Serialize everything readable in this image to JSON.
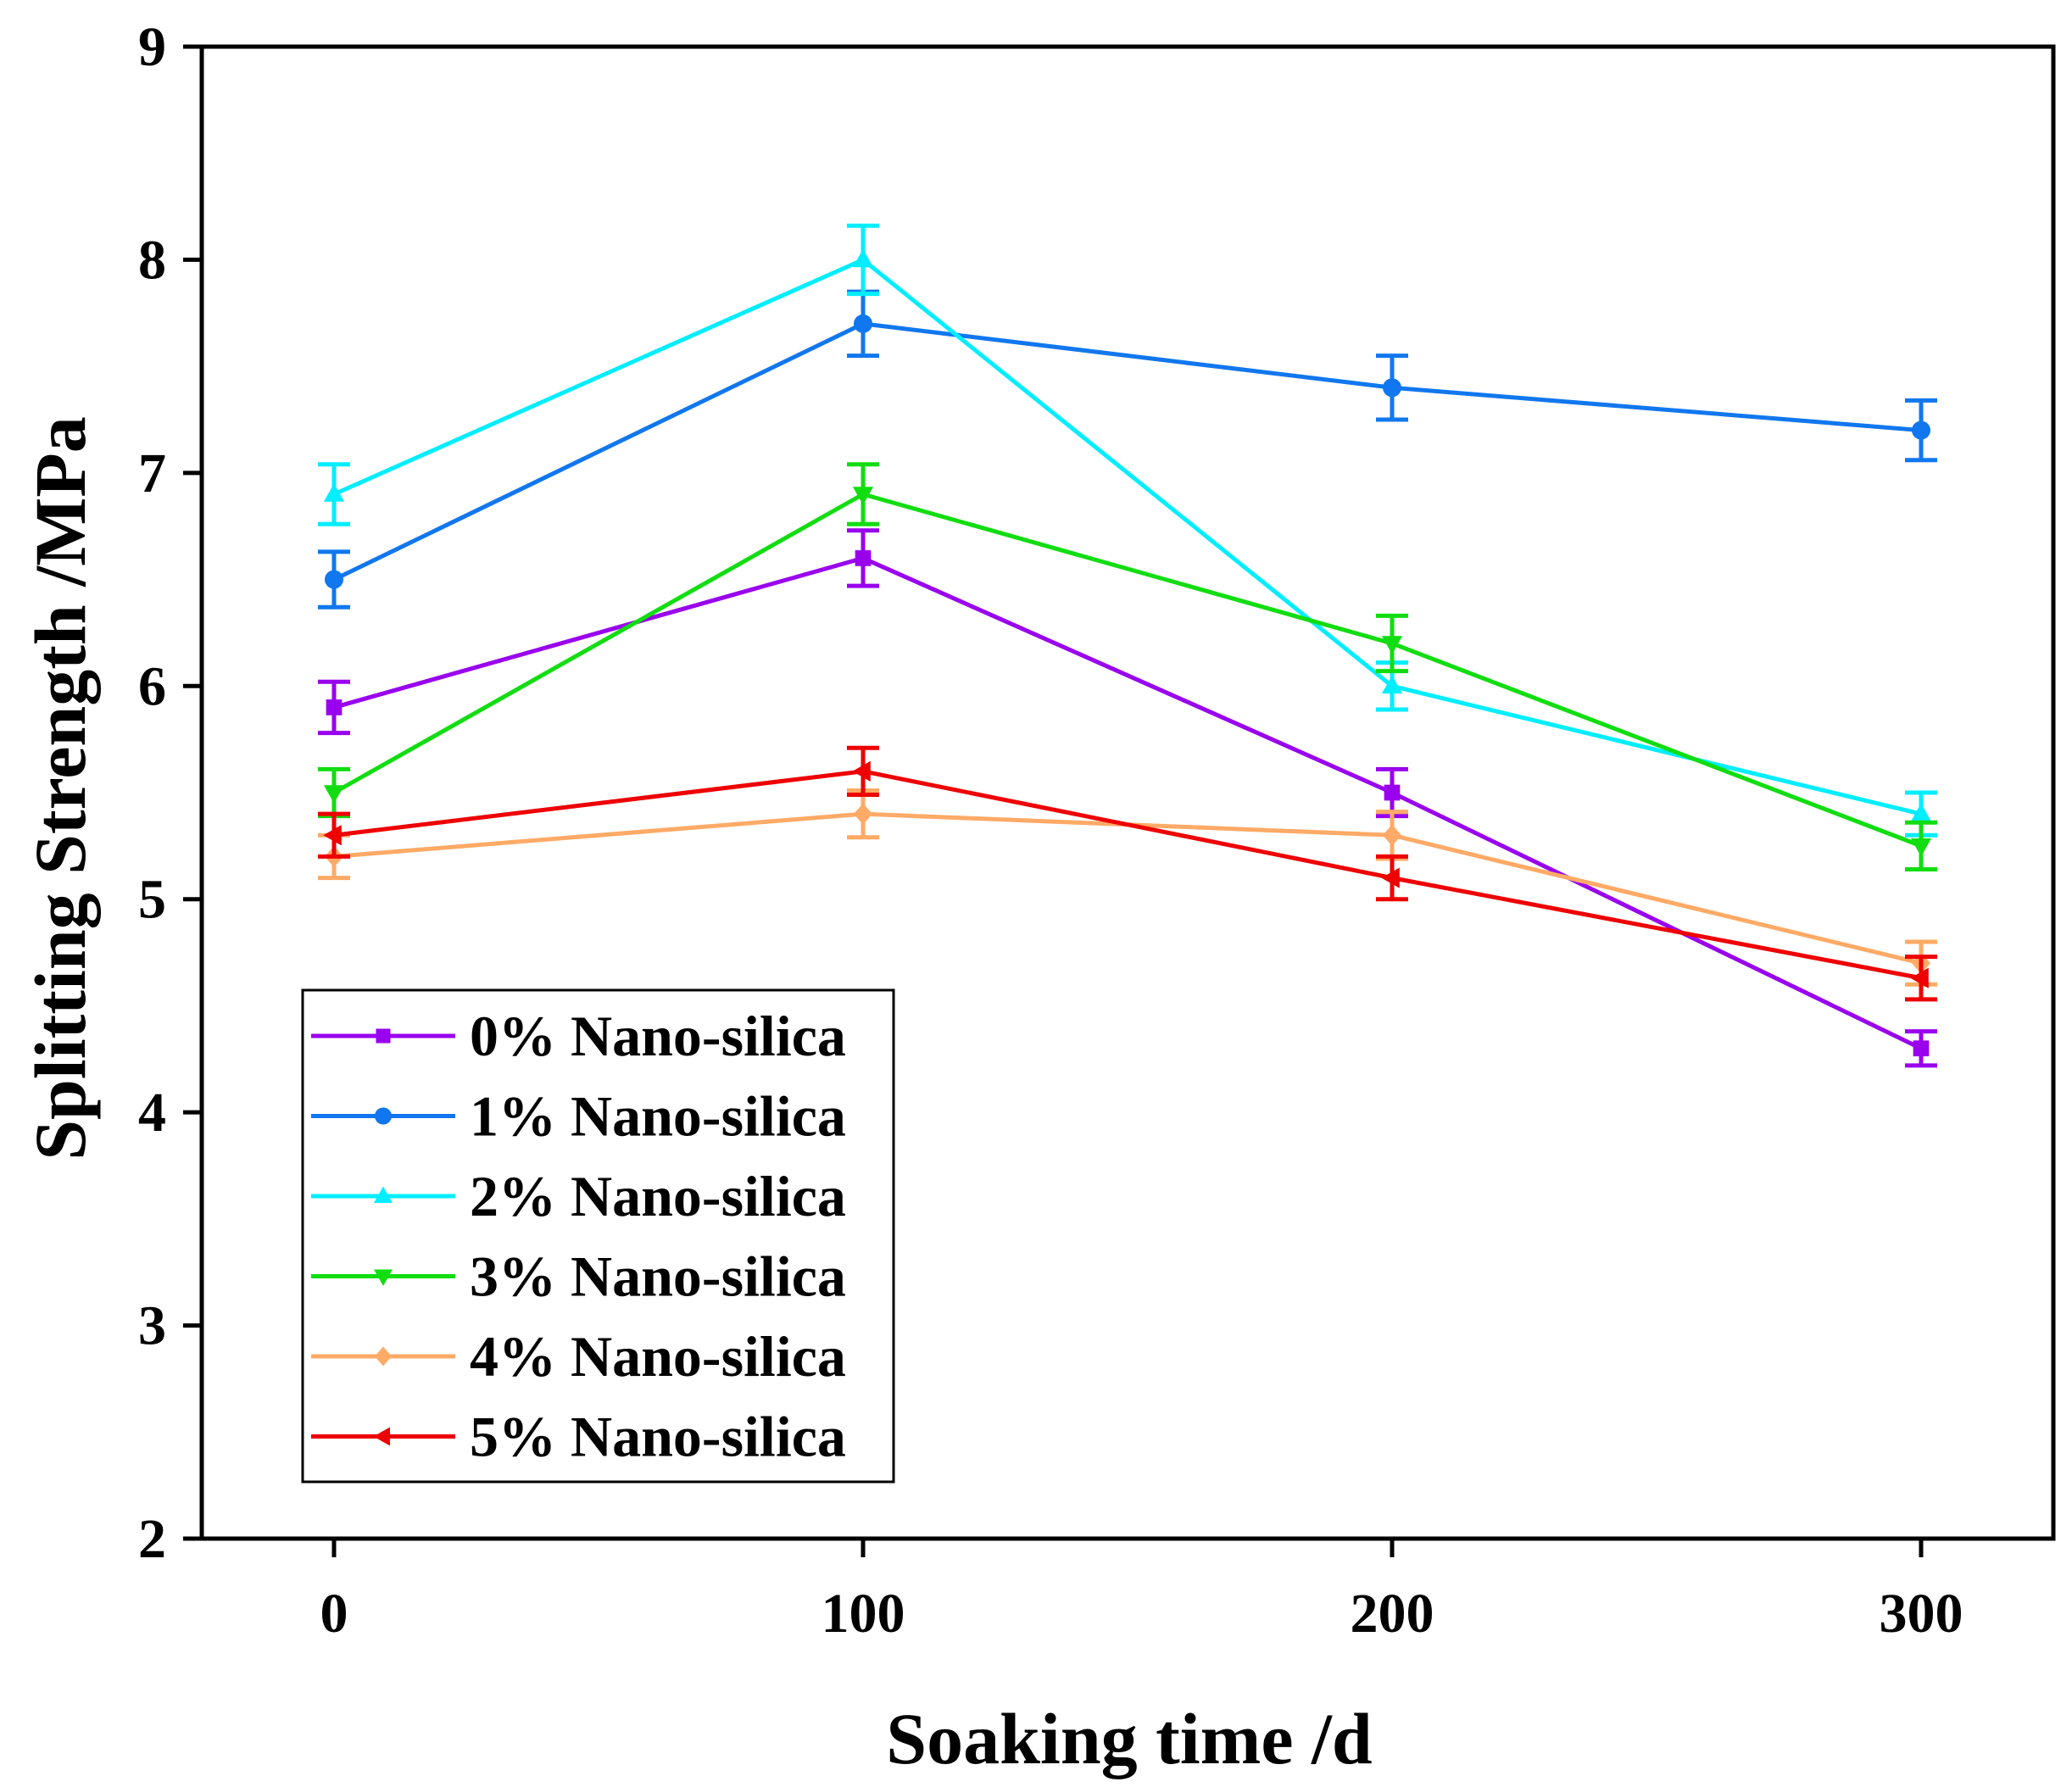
{
  "chart_data": {
    "type": "line",
    "xlabel": "Soaking time /d",
    "ylabel": "Splitting Strength /MPa",
    "xlim": [
      -25,
      325
    ],
    "ylim": [
      2,
      9
    ],
    "xticks": [
      0,
      100,
      200,
      300
    ],
    "yticks": [
      2,
      3,
      4,
      5,
      6,
      7,
      8,
      9
    ],
    "xtick_labels": [
      "0",
      "100",
      "200",
      "300"
    ],
    "ytick_labels": [
      "2",
      "3",
      "4",
      "5",
      "6",
      "7",
      "8",
      "9"
    ],
    "x": [
      0,
      100,
      200,
      300
    ],
    "legend_position": "bottom-left",
    "series": [
      {
        "name": "0% Nano-silica",
        "color": "#9900EE",
        "marker": "square",
        "values": [
          5.9,
          6.6,
          5.5,
          4.3
        ],
        "errors": [
          0.12,
          0.13,
          0.11,
          0.08
        ]
      },
      {
        "name": "1% Nano-silica",
        "color": "#1177EE",
        "marker": "circle",
        "values": [
          6.5,
          7.7,
          7.4,
          7.2
        ],
        "errors": [
          0.13,
          0.15,
          0.15,
          0.14
        ]
      },
      {
        "name": "2% Nano-silica",
        "color": "#00EEFF",
        "marker": "triangle-up",
        "values": [
          6.9,
          8.0,
          6.0,
          5.4
        ],
        "errors": [
          0.14,
          0.16,
          0.11,
          0.1
        ]
      },
      {
        "name": "3% Nano-silica",
        "color": "#11DD11",
        "marker": "triangle-down",
        "values": [
          5.5,
          6.9,
          6.2,
          5.25
        ],
        "errors": [
          0.11,
          0.14,
          0.13,
          0.11
        ]
      },
      {
        "name": "4% Nano-silica",
        "color": "#FFAA66",
        "marker": "diamond",
        "values": [
          5.2,
          5.4,
          5.3,
          4.7
        ],
        "errors": [
          0.1,
          0.11,
          0.11,
          0.1
        ]
      },
      {
        "name": "5% Nano-silica",
        "color": "#EE0000",
        "marker": "triangle-left",
        "values": [
          5.3,
          5.6,
          5.1,
          4.63
        ],
        "errors": [
          0.1,
          0.11,
          0.1,
          0.1
        ]
      }
    ]
  }
}
